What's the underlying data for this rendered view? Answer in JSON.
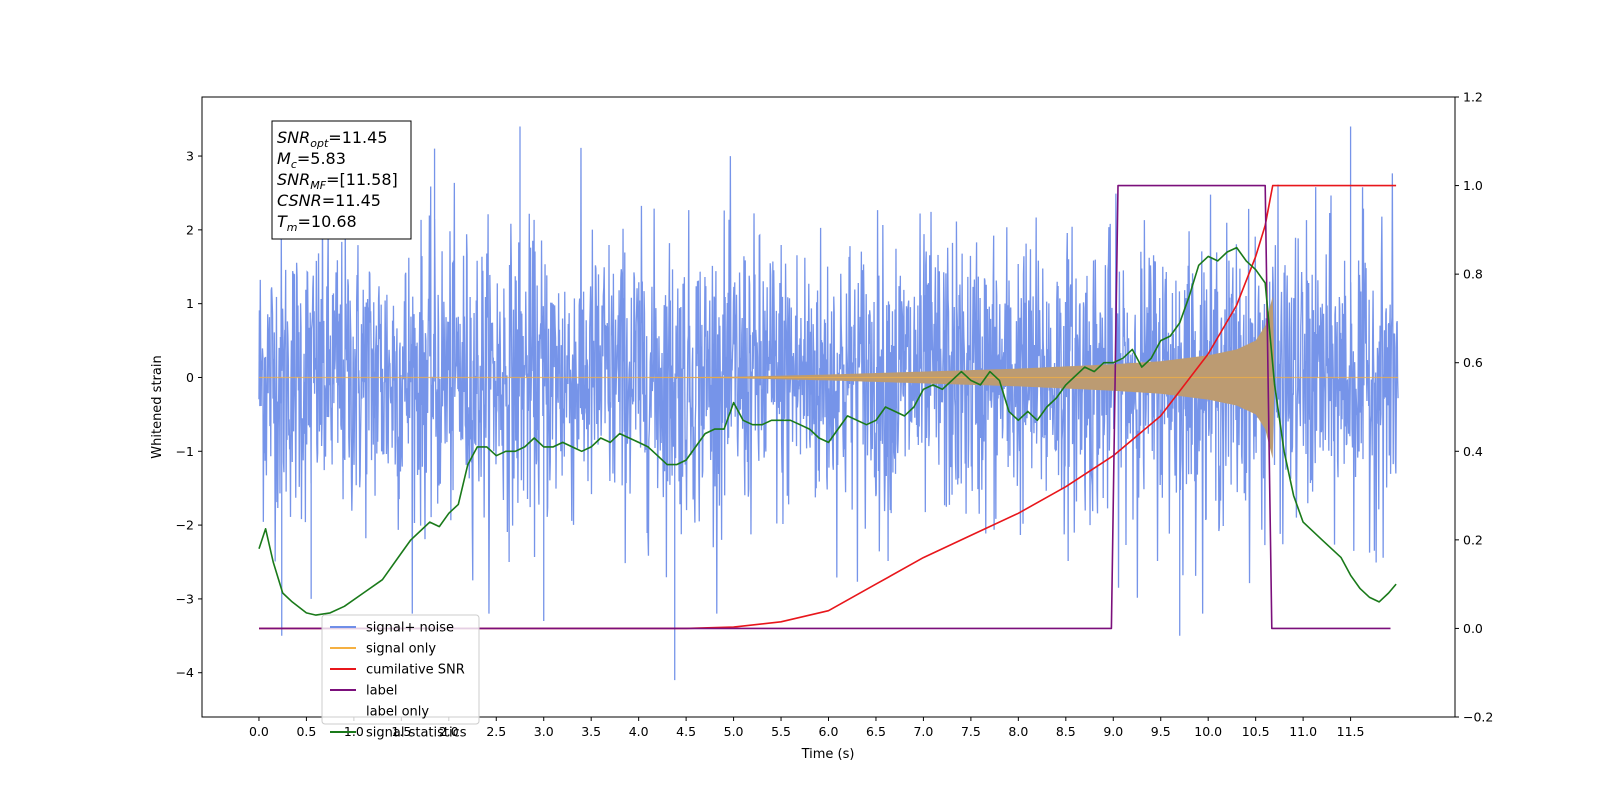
{
  "chart_data": {
    "type": "line",
    "xlabel": "Time (s)",
    "ylabel": "Whitened strain",
    "xlim": [
      -0.6,
      12.6
    ],
    "ylim": [
      -4.6,
      3.8
    ],
    "y2lim": [
      -0.2,
      1.2
    ],
    "x_ticks": [
      0.0,
      0.5,
      1.0,
      1.5,
      2.0,
      2.5,
      3.0,
      3.5,
      4.0,
      4.5,
      5.0,
      5.5,
      6.0,
      6.5,
      7.0,
      7.5,
      8.0,
      8.5,
      9.0,
      9.5,
      10.0,
      10.5,
      11.0,
      11.5
    ],
    "x_tick_labels": [
      "0.0",
      "0.5",
      "1.0",
      "1.5",
      "2.0",
      "2.5",
      "3.0",
      "3.5",
      "4.0",
      "4.5",
      "5.0",
      "5.5",
      "6.0",
      "6.5",
      "7.0",
      "7.5",
      "8.0",
      "8.5",
      "9.0",
      "9.5",
      "10.0",
      "10.5",
      "11.0",
      "11.5"
    ],
    "y_ticks": [
      -4,
      -3,
      -2,
      -1,
      0,
      1,
      2,
      3
    ],
    "y_tick_labels": [
      "−4",
      "−3",
      "−2",
      "−1",
      "0",
      "1",
      "2",
      "3"
    ],
    "y2_ticks": [
      -0.2,
      0.0,
      0.2,
      0.4,
      0.6,
      0.8,
      1.0,
      1.2
    ],
    "y2_tick_labels": [
      "−0.2",
      "0.0",
      "0.2",
      "0.4",
      "0.6",
      "0.8",
      "1.0",
      "1.2"
    ],
    "grid": false,
    "legend_position": "lower-left",
    "info_box": [
      {
        "base": "SNR",
        "sub": "opt",
        "value": "=11.45"
      },
      {
        "base": "M",
        "sub": "c",
        "value": "=5.83"
      },
      {
        "base": "SNR",
        "sub": "MF",
        "value": "=[11.58]"
      },
      {
        "base": "CSNR",
        "sub": "",
        "value": "=11.45"
      },
      {
        "base": "T",
        "sub": "m",
        "value": "=10.68"
      }
    ],
    "series": [
      {
        "name": "signal+ noise",
        "axis": "left",
        "kind": "noise",
        "color": "#6f8ee8",
        "x_range": [
          0.0,
          12.0
        ],
        "noise_std": 0.95,
        "outliers": [
          [
            0.24,
            -3.5
          ],
          [
            0.55,
            -3.0
          ],
          [
            2.75,
            3.4
          ],
          [
            3.0,
            -3.3
          ],
          [
            4.38,
            -4.1
          ],
          [
            9.7,
            -3.5
          ],
          [
            11.5,
            3.4
          ],
          [
            1.85,
            3.1
          ]
        ]
      },
      {
        "name": "signal only",
        "axis": "left",
        "kind": "chirp_envelope",
        "color": "#f5b041",
        "fill": "#bc9b72",
        "x": [
          0.0,
          4.0,
          5.0,
          6.0,
          6.5,
          7.0,
          7.5,
          8.0,
          8.5,
          9.0,
          9.5,
          10.0,
          10.3,
          10.5,
          10.6,
          10.68,
          10.7,
          12.0
        ],
        "amplitude": [
          0.0,
          0.0,
          0.01,
          0.04,
          0.06,
          0.08,
          0.1,
          0.12,
          0.15,
          0.18,
          0.22,
          0.3,
          0.38,
          0.5,
          0.7,
          1.1,
          0.0,
          0.0
        ]
      },
      {
        "name": "cumilative SNR",
        "axis": "right",
        "kind": "line",
        "color": "#e8161b",
        "x": [
          0.0,
          4.0,
          4.5,
          5.0,
          5.5,
          6.0,
          6.5,
          7.0,
          7.5,
          8.0,
          8.5,
          9.0,
          9.5,
          10.0,
          10.3,
          10.5,
          10.6,
          10.68,
          10.7,
          11.0,
          11.5,
          11.98
        ],
        "values": [
          0.0,
          0.0,
          0.0,
          0.003,
          0.015,
          0.04,
          0.1,
          0.16,
          0.21,
          0.26,
          0.32,
          0.39,
          0.48,
          0.62,
          0.73,
          0.84,
          0.91,
          1.0,
          1.0,
          1.0,
          1.0,
          1.0
        ]
      },
      {
        "name": "label",
        "axis": "right",
        "kind": "line",
        "color": "#7b0f7b",
        "x": [
          0.0,
          8.98,
          9.05,
          10.6,
          10.67,
          11.0,
          11.92
        ],
        "values": [
          0.0,
          0.0,
          1.0,
          1.0,
          0.0,
          0.0,
          0.0
        ]
      },
      {
        "name": "label only",
        "axis": "right",
        "kind": "hidden",
        "color": "#b0b0b0"
      },
      {
        "name": "signal statistics",
        "axis": "right",
        "kind": "line",
        "color": "#1a7a1a",
        "x": [
          0.0,
          0.07,
          0.15,
          0.25,
          0.35,
          0.5,
          0.6,
          0.75,
          0.9,
          1.1,
          1.3,
          1.5,
          1.6,
          1.7,
          1.8,
          1.9,
          2.0,
          2.1,
          2.2,
          2.3,
          2.4,
          2.5,
          2.6,
          2.7,
          2.8,
          2.9,
          3.0,
          3.1,
          3.2,
          3.3,
          3.4,
          3.5,
          3.6,
          3.7,
          3.8,
          3.9,
          4.0,
          4.1,
          4.2,
          4.3,
          4.4,
          4.5,
          4.6,
          4.7,
          4.8,
          4.9,
          5.0,
          5.1,
          5.2,
          5.3,
          5.4,
          5.5,
          5.6,
          5.7,
          5.8,
          5.9,
          6.0,
          6.1,
          6.2,
          6.3,
          6.4,
          6.5,
          6.6,
          6.7,
          6.8,
          6.9,
          7.0,
          7.1,
          7.2,
          7.3,
          7.4,
          7.5,
          7.6,
          7.7,
          7.8,
          7.9,
          8.0,
          8.1,
          8.2,
          8.3,
          8.4,
          8.5,
          8.6,
          8.7,
          8.8,
          8.9,
          9.0,
          9.1,
          9.2,
          9.3,
          9.4,
          9.5,
          9.6,
          9.7,
          9.8,
          9.9,
          10.0,
          10.1,
          10.2,
          10.3,
          10.4,
          10.5,
          10.6,
          10.7,
          10.8,
          10.9,
          11.0,
          11.2,
          11.4,
          11.5,
          11.6,
          11.7,
          11.8,
          11.9,
          11.98
        ],
        "values": [
          0.18,
          0.225,
          0.15,
          0.08,
          0.06,
          0.035,
          0.03,
          0.035,
          0.05,
          0.08,
          0.11,
          0.17,
          0.2,
          0.22,
          0.24,
          0.23,
          0.26,
          0.28,
          0.37,
          0.41,
          0.41,
          0.39,
          0.4,
          0.4,
          0.41,
          0.43,
          0.41,
          0.41,
          0.42,
          0.41,
          0.4,
          0.41,
          0.43,
          0.42,
          0.44,
          0.43,
          0.42,
          0.41,
          0.39,
          0.37,
          0.37,
          0.38,
          0.41,
          0.44,
          0.45,
          0.45,
          0.51,
          0.47,
          0.46,
          0.46,
          0.47,
          0.47,
          0.47,
          0.46,
          0.45,
          0.43,
          0.42,
          0.45,
          0.48,
          0.47,
          0.46,
          0.47,
          0.5,
          0.49,
          0.48,
          0.5,
          0.54,
          0.55,
          0.54,
          0.56,
          0.58,
          0.56,
          0.55,
          0.58,
          0.56,
          0.49,
          0.47,
          0.49,
          0.47,
          0.5,
          0.52,
          0.55,
          0.57,
          0.59,
          0.58,
          0.6,
          0.6,
          0.61,
          0.63,
          0.59,
          0.61,
          0.65,
          0.66,
          0.69,
          0.75,
          0.82,
          0.84,
          0.83,
          0.85,
          0.86,
          0.83,
          0.81,
          0.78,
          0.55,
          0.4,
          0.3,
          0.24,
          0.2,
          0.16,
          0.12,
          0.09,
          0.07,
          0.06,
          0.08,
          0.1
        ]
      }
    ]
  }
}
